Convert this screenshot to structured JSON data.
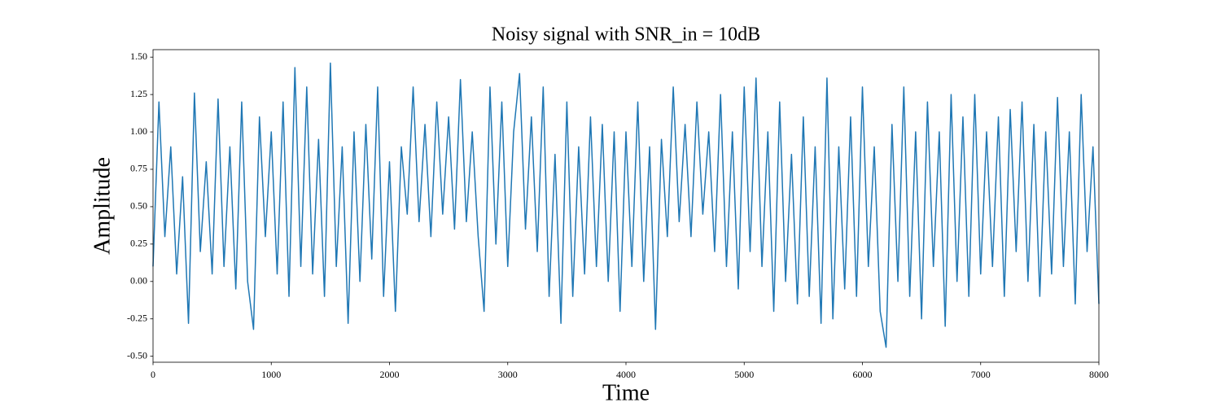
{
  "chart_data": {
    "type": "line",
    "title": "Noisy signal with SNR_in = 10dB",
    "x_label": "Time",
    "y_label": "Amplitude",
    "color": "#1f77b4",
    "x": [
      0,
      50,
      100,
      150,
      200,
      250,
      300,
      350,
      400,
      450,
      500,
      550,
      600,
      650,
      700,
      750,
      800,
      850,
      900,
      950,
      1000,
      1050,
      1100,
      1150,
      1200,
      1250,
      1300,
      1350,
      1400,
      1450,
      1500,
      1550,
      1600,
      1650,
      1700,
      1750,
      1800,
      1850,
      1900,
      1950,
      2000,
      2050,
      2100,
      2150,
      2200,
      2250,
      2300,
      2350,
      2400,
      2450,
      2500,
      2550,
      2600,
      2650,
      2700,
      2750,
      2800,
      2850,
      2900,
      2950,
      3000,
      3050,
      3100,
      3150,
      3200,
      3250,
      3300,
      3350,
      3400,
      3450,
      3500,
      3550,
      3600,
      3650,
      3700,
      3750,
      3800,
      3850,
      3900,
      3950,
      4000,
      4050,
      4100,
      4150,
      4200,
      4250,
      4300,
      4350,
      4400,
      4450,
      4500,
      4550,
      4600,
      4650,
      4700,
      4750,
      4800,
      4850,
      4900,
      4950,
      5000,
      5050,
      5100,
      5150,
      5200,
      5250,
      5300,
      5350,
      5400,
      5450,
      5500,
      5550,
      5600,
      5650,
      5700,
      5750,
      5800,
      5850,
      5900,
      5950,
      6000,
      6050,
      6100,
      6150,
      6200,
      6250,
      6300,
      6350,
      6400,
      6450,
      6500,
      6550,
      6600,
      6650,
      6700,
      6750,
      6800,
      6850,
      6900,
      6950,
      7000,
      7050,
      7100,
      7150,
      7200,
      7250,
      7300,
      7350,
      7400,
      7450,
      7500,
      7550,
      7600,
      7650,
      7700,
      7750,
      7800,
      7850,
      7900,
      7950,
      8000
    ],
    "values": [
      0.1,
      1.2,
      0.3,
      0.9,
      0.05,
      0.7,
      -0.28,
      1.26,
      0.2,
      0.8,
      0.05,
      1.22,
      0.1,
      0.9,
      -0.05,
      1.2,
      0.0,
      -0.32,
      1.1,
      0.3,
      1.0,
      0.05,
      1.2,
      -0.1,
      1.43,
      0.1,
      1.3,
      0.05,
      0.95,
      -0.1,
      1.46,
      0.1,
      0.9,
      -0.28,
      1.0,
      0.0,
      1.05,
      0.15,
      1.3,
      -0.1,
      0.8,
      -0.2,
      0.9,
      0.45,
      1.3,
      0.4,
      1.05,
      0.3,
      1.2,
      0.45,
      1.1,
      0.35,
      1.35,
      0.4,
      1.0,
      0.3,
      -0.2,
      1.3,
      0.25,
      1.2,
      0.1,
      1.0,
      1.39,
      0.35,
      1.1,
      0.2,
      1.3,
      -0.1,
      0.85,
      -0.28,
      1.2,
      -0.1,
      0.9,
      0.05,
      1.1,
      0.1,
      1.05,
      0.0,
      1.0,
      -0.2,
      1.0,
      0.1,
      1.2,
      0.0,
      0.9,
      -0.32,
      0.95,
      0.3,
      1.3,
      0.4,
      1.05,
      0.3,
      1.2,
      0.45,
      1.0,
      0.2,
      1.25,
      0.1,
      1.0,
      -0.05,
      1.3,
      0.2,
      1.36,
      0.1,
      1.0,
      -0.2,
      1.2,
      0.0,
      0.85,
      -0.15,
      1.1,
      -0.1,
      0.9,
      -0.28,
      1.36,
      -0.25,
      0.9,
      -0.05,
      1.1,
      -0.1,
      1.3,
      0.1,
      0.9,
      -0.2,
      -0.44,
      1.05,
      0.0,
      1.3,
      -0.1,
      1.0,
      -0.25,
      1.2,
      0.1,
      1.0,
      -0.3,
      1.25,
      0.0,
      1.1,
      -0.1,
      1.25,
      0.05,
      1.0,
      0.1,
      1.1,
      -0.1,
      1.15,
      0.2,
      1.2,
      0.0,
      1.05,
      -0.1,
      1.0,
      0.05,
      1.23,
      0.1,
      1.0,
      -0.15,
      1.25,
      0.2,
      0.9,
      -0.15
    ],
    "xlim": [
      0,
      8000
    ],
    "ylim": [
      -0.54,
      1.55
    ],
    "xticks": [
      0,
      1000,
      2000,
      3000,
      4000,
      5000,
      6000,
      7000,
      8000
    ],
    "yticks": [
      {
        "value": -0.5,
        "label": "-0.50"
      },
      {
        "value": -0.25,
        "label": "-0.25"
      },
      {
        "value": 0,
        "label": "0.00"
      },
      {
        "value": 0.25,
        "label": "0.25"
      },
      {
        "value": 0.5,
        "label": "0.50"
      },
      {
        "value": 0.75,
        "label": "0.75"
      },
      {
        "value": 1,
        "label": "1.00"
      },
      {
        "value": 1.25,
        "label": "1.25"
      },
      {
        "value": 1.5,
        "label": "1.50"
      }
    ]
  }
}
